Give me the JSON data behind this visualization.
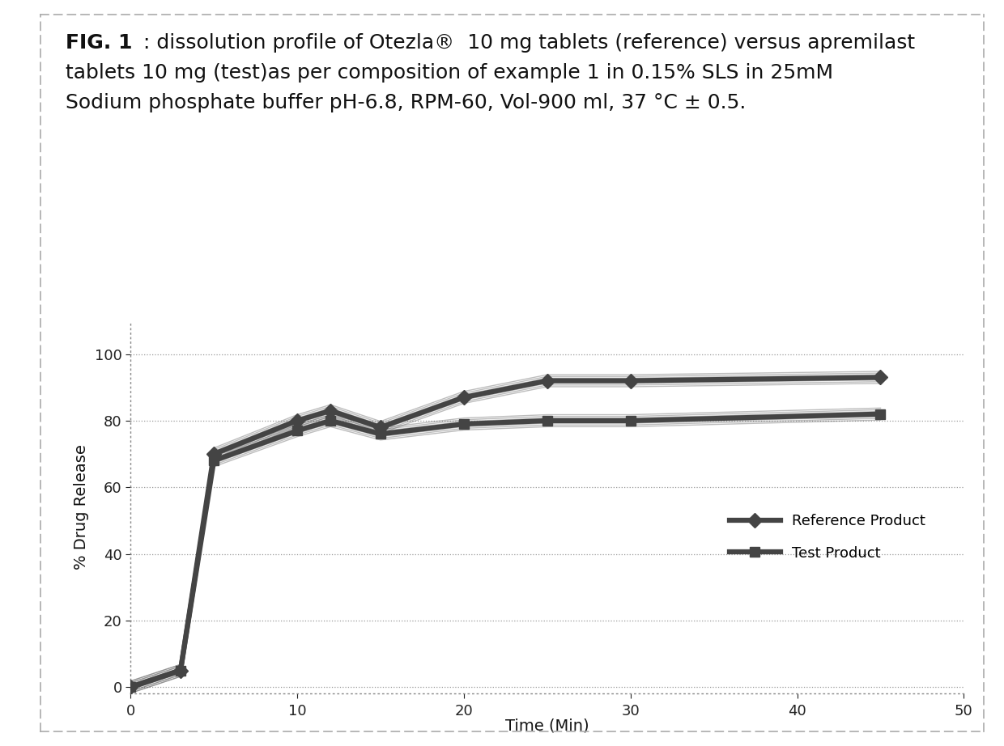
{
  "title_line1": "FIG. 1",
  "title_bold": "FIG. 1",
  "title_rest1": ": dissolution profile of Otezla®  10 mg tablets (reference) versus apremilast",
  "title_line2": "tablets 10 mg (test)as per composition of example 1 in 0.15% SLS in 25mM",
  "title_line3": "Sodium phosphate buffer pH-6.8, RPM-60, Vol-900 ml, 37 °C ± 0.5.",
  "reference_x": [
    0,
    3,
    5,
    10,
    12,
    15,
    20,
    25,
    30,
    45
  ],
  "reference_y": [
    0,
    5,
    70,
    80,
    83,
    78,
    87,
    92,
    92,
    93
  ],
  "test_x": [
    0,
    3,
    5,
    10,
    12,
    15,
    20,
    25,
    30,
    45
  ],
  "test_y": [
    0,
    5,
    68,
    77,
    80,
    76,
    79,
    80,
    80,
    82
  ],
  "xlabel": "Time (Min)",
  "ylabel": "% Drug Release",
  "xlim": [
    0,
    50
  ],
  "ylim": [
    -2,
    110
  ],
  "xticks": [
    0,
    10,
    20,
    30,
    40,
    50
  ],
  "yticks": [
    0,
    20,
    40,
    60,
    80,
    100
  ],
  "legend_ref": "Reference Product",
  "legend_test": "Test Product",
  "line_color": "#444444",
  "bg_color": "#ffffff",
  "title_fontsize": 18,
  "axis_label_fontsize": 14,
  "tick_fontsize": 13,
  "legend_fontsize": 13
}
